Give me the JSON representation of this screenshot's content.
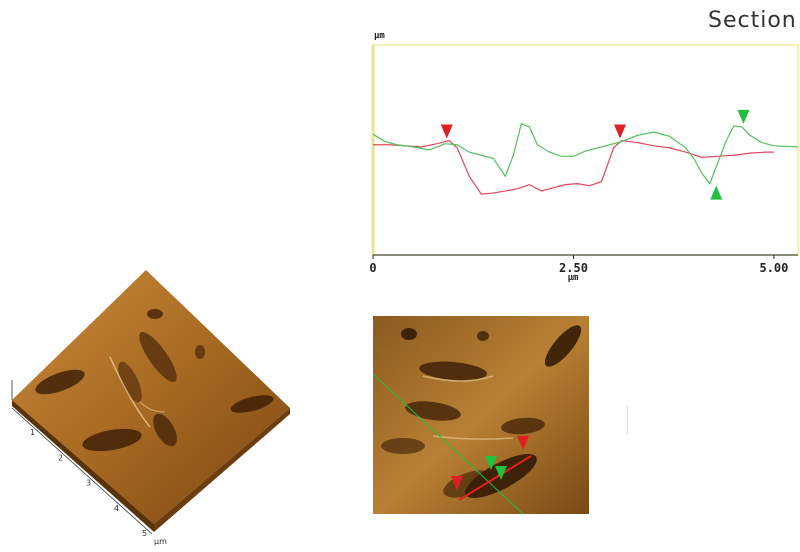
{
  "title": "Section",
  "chart_data": [
    {
      "type": "line",
      "title": "Section",
      "xlabel": "µm",
      "ylabel": "µm",
      "xlim": [
        0,
        5.3
      ],
      "ylim": [
        -1,
        1
      ],
      "x_ticks": [
        "0",
        "2.50",
        "5.00"
      ],
      "x_tick_values": [
        0,
        2.5,
        5.0
      ],
      "grid": false,
      "series": [
        {
          "color": "#e04a5a",
          "x": [
            0.0,
            0.2,
            0.4,
            0.6,
            0.8,
            0.95,
            1.05,
            1.2,
            1.35,
            1.5,
            1.65,
            1.8,
            1.95,
            2.1,
            2.25,
            2.4,
            2.55,
            2.7,
            2.85,
            3.0,
            3.1,
            3.3,
            3.5,
            3.7,
            3.9,
            4.1,
            4.3,
            4.5,
            4.7,
            4.9,
            5.0
          ],
          "y": [
            0.05,
            0.05,
            0.04,
            0.03,
            0.06,
            0.09,
            0.02,
            -0.25,
            -0.42,
            -0.41,
            -0.39,
            -0.37,
            -0.33,
            -0.39,
            -0.36,
            -0.33,
            -0.32,
            -0.34,
            -0.3,
            0.02,
            0.09,
            0.07,
            0.04,
            0.02,
            -0.02,
            -0.07,
            -0.06,
            -0.05,
            -0.03,
            -0.02,
            -0.02
          ]
        },
        {
          "color": "#52c25a",
          "x": [
            0.0,
            0.15,
            0.3,
            0.5,
            0.7,
            0.9,
            1.05,
            1.2,
            1.35,
            1.5,
            1.65,
            1.75,
            1.85,
            1.95,
            2.05,
            2.2,
            2.35,
            2.5,
            2.65,
            2.8,
            2.95,
            3.1,
            3.3,
            3.5,
            3.7,
            3.9,
            4.0,
            4.1,
            4.2,
            4.3,
            4.4,
            4.5,
            4.6,
            4.7,
            4.85,
            5.0,
            5.3
          ],
          "y": [
            0.15,
            0.08,
            0.05,
            0.03,
            0.0,
            0.06,
            0.05,
            -0.02,
            -0.05,
            -0.08,
            -0.25,
            -0.05,
            0.25,
            0.22,
            0.05,
            -0.02,
            -0.06,
            -0.06,
            -0.01,
            0.02,
            0.05,
            0.08,
            0.14,
            0.17,
            0.13,
            0.02,
            -0.08,
            -0.22,
            -0.32,
            -0.12,
            0.08,
            0.23,
            0.22,
            0.14,
            0.07,
            0.04,
            0.03
          ]
        }
      ],
      "markers": [
        {
          "x": 0.92,
          "y": 0.09,
          "dir": "down",
          "color": "#e02020"
        },
        {
          "x": 3.08,
          "y": 0.09,
          "dir": "down",
          "color": "#e02020"
        },
        {
          "x": 4.28,
          "y": -0.32,
          "dir": "up",
          "color": "#20c040"
        },
        {
          "x": 4.62,
          "y": 0.23,
          "dir": "down",
          "color": "#20c040"
        }
      ]
    },
    {
      "type": "heatmap",
      "title": "",
      "x_ticks_3d": [
        "1",
        "2",
        "3",
        "4",
        "5"
      ],
      "y_ticks_3d": [
        "µm"
      ]
    }
  ]
}
